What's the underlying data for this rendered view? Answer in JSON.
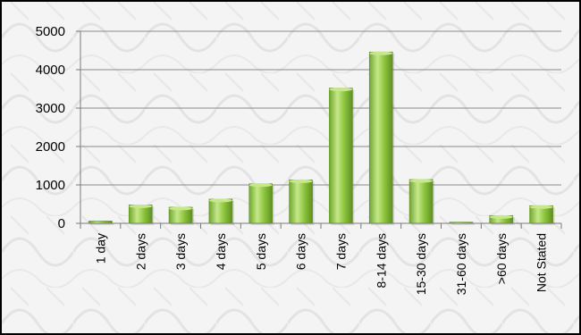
{
  "chart_data": {
    "type": "bar",
    "title": "",
    "xlabel": "",
    "ylabel": "",
    "categories": [
      "1 day",
      "2 days",
      "3 days",
      "4 days",
      "5 days",
      "6 days",
      "7 days",
      "8-14 days",
      "15-30 days",
      "31-60 days",
      ">60 days",
      "Not Stated"
    ],
    "values": [
      60,
      480,
      420,
      630,
      1030,
      1130,
      3520,
      4460,
      1140,
      30,
      200,
      460
    ],
    "ylim": [
      0,
      5000
    ],
    "yticks": [
      0,
      1000,
      2000,
      3000,
      4000,
      5000
    ],
    "grid": true,
    "legend": "none",
    "bar_color": "#8cc43c",
    "bar_highlight": "#c6e88a",
    "bar_shadow": "#5e8f22"
  }
}
